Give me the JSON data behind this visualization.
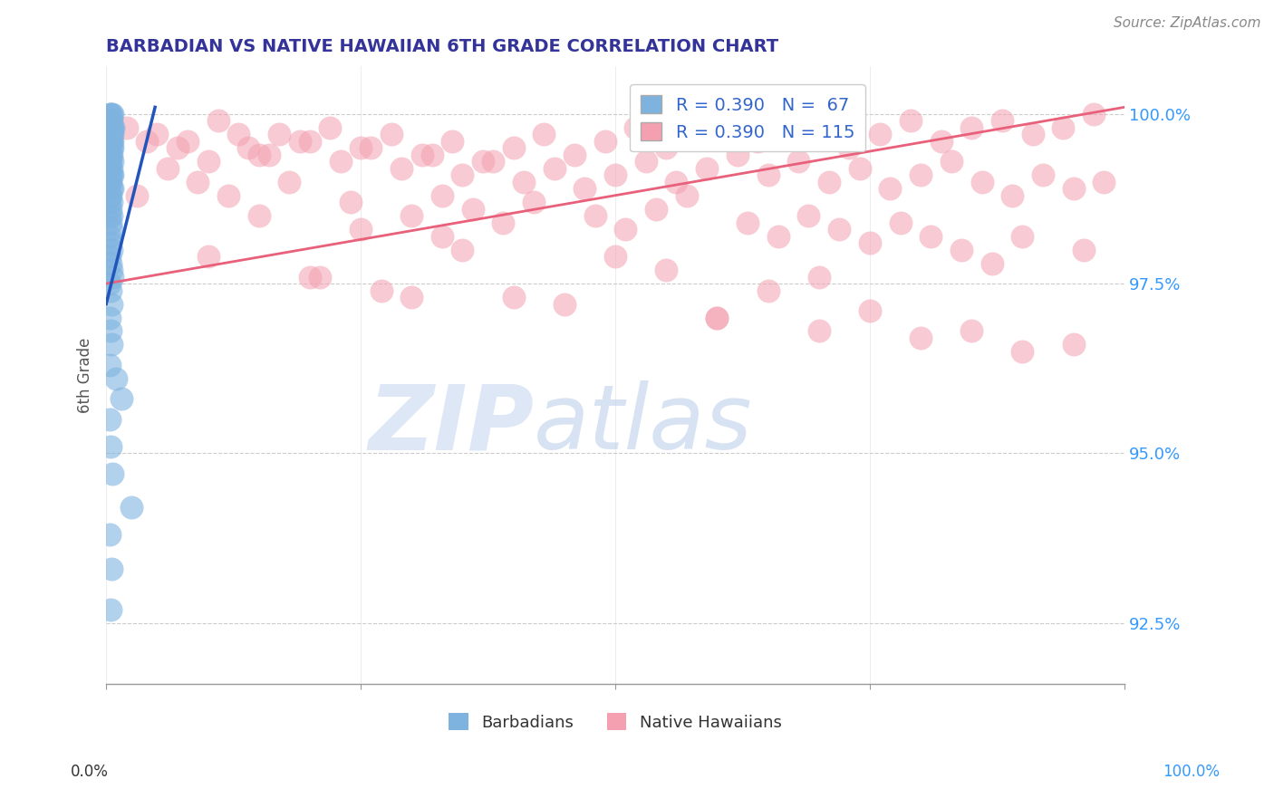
{
  "title": "BARBADIAN VS NATIVE HAWAIIAN 6TH GRADE CORRELATION CHART",
  "source_text": "Source: ZipAtlas.com",
  "ylabel": "6th Grade",
  "y_ticks": [
    0.925,
    0.95,
    0.975,
    1.0
  ],
  "y_tick_labels": [
    "92.5%",
    "95.0%",
    "97.5%",
    "100.0%"
  ],
  "x_ticks": [
    0.0,
    0.25,
    0.5,
    0.75,
    1.0
  ],
  "xlim": [
    0.0,
    1.0
  ],
  "ylim": [
    0.916,
    1.007
  ],
  "legend_blue_R": "R = 0.390",
  "legend_blue_N": "N =  67",
  "legend_pink_R": "R = 0.390",
  "legend_pink_N": "N = 115",
  "blue_color": "#7EB3E0",
  "pink_color": "#F4A0B0",
  "blue_line_color": "#2255BB",
  "pink_line_color": "#E8607A",
  "grid_color": "#CCCCCC",
  "blue_scatter_x": [
    0.003,
    0.004,
    0.005,
    0.006,
    0.003,
    0.004,
    0.005,
    0.006,
    0.007,
    0.005,
    0.004,
    0.006,
    0.005,
    0.003,
    0.004,
    0.006,
    0.005,
    0.004,
    0.003,
    0.005,
    0.006,
    0.004,
    0.005,
    0.003,
    0.006,
    0.004,
    0.005,
    0.003,
    0.004,
    0.005,
    0.006,
    0.003,
    0.004,
    0.005,
    0.006,
    0.003,
    0.004,
    0.005,
    0.003,
    0.004,
    0.005,
    0.003,
    0.004,
    0.005,
    0.003,
    0.004,
    0.005,
    0.003,
    0.004,
    0.005,
    0.006,
    0.003,
    0.004,
    0.005,
    0.003,
    0.004,
    0.005,
    0.003,
    0.01,
    0.015,
    0.003,
    0.004,
    0.006,
    0.025,
    0.003,
    0.005,
    0.004
  ],
  "blue_scatter_y": [
    1.0,
    1.0,
    1.0,
    1.0,
    0.999,
    0.999,
    0.999,
    0.998,
    0.998,
    0.998,
    0.997,
    0.997,
    0.997,
    0.997,
    0.996,
    0.996,
    0.996,
    0.996,
    0.995,
    0.995,
    0.995,
    0.994,
    0.994,
    0.993,
    0.993,
    0.993,
    0.992,
    0.992,
    0.991,
    0.991,
    0.991,
    0.99,
    0.99,
    0.989,
    0.989,
    0.988,
    0.988,
    0.987,
    0.987,
    0.986,
    0.985,
    0.985,
    0.984,
    0.983,
    0.982,
    0.981,
    0.98,
    0.979,
    0.978,
    0.977,
    0.976,
    0.975,
    0.974,
    0.972,
    0.97,
    0.968,
    0.966,
    0.963,
    0.961,
    0.958,
    0.955,
    0.951,
    0.947,
    0.942,
    0.938,
    0.933,
    0.927
  ],
  "pink_scatter_x": [
    0.02,
    0.05,
    0.08,
    0.11,
    0.14,
    0.17,
    0.2,
    0.15,
    0.22,
    0.25,
    0.28,
    0.31,
    0.34,
    0.37,
    0.4,
    0.43,
    0.46,
    0.49,
    0.52,
    0.55,
    0.58,
    0.61,
    0.64,
    0.67,
    0.7,
    0.73,
    0.76,
    0.79,
    0.82,
    0.85,
    0.88,
    0.91,
    0.94,
    0.97,
    0.04,
    0.07,
    0.1,
    0.13,
    0.16,
    0.19,
    0.23,
    0.26,
    0.29,
    0.32,
    0.35,
    0.38,
    0.41,
    0.44,
    0.47,
    0.5,
    0.53,
    0.56,
    0.59,
    0.62,
    0.65,
    0.68,
    0.71,
    0.74,
    0.77,
    0.8,
    0.83,
    0.86,
    0.89,
    0.92,
    0.95,
    0.98,
    0.06,
    0.09,
    0.12,
    0.18,
    0.24,
    0.3,
    0.33,
    0.36,
    0.39,
    0.42,
    0.48,
    0.51,
    0.54,
    0.57,
    0.63,
    0.66,
    0.69,
    0.72,
    0.75,
    0.78,
    0.81,
    0.84,
    0.87,
    0.9,
    0.96,
    0.21,
    0.27,
    0.45,
    0.6,
    0.03,
    0.15,
    0.33,
    0.5,
    0.7,
    0.25,
    0.35,
    0.55,
    0.65,
    0.75,
    0.85,
    0.95,
    0.4,
    0.6,
    0.8,
    0.1,
    0.2,
    0.3,
    0.7,
    0.9
  ],
  "pink_scatter_y": [
    0.998,
    0.997,
    0.996,
    0.999,
    0.995,
    0.997,
    0.996,
    0.994,
    0.998,
    0.995,
    0.997,
    0.994,
    0.996,
    0.993,
    0.995,
    0.997,
    0.994,
    0.996,
    0.998,
    0.995,
    0.997,
    0.999,
    0.996,
    0.997,
    0.998,
    0.995,
    0.997,
    0.999,
    0.996,
    0.998,
    0.999,
    0.997,
    0.998,
    1.0,
    0.996,
    0.995,
    0.993,
    0.997,
    0.994,
    0.996,
    0.993,
    0.995,
    0.992,
    0.994,
    0.991,
    0.993,
    0.99,
    0.992,
    0.989,
    0.991,
    0.993,
    0.99,
    0.992,
    0.994,
    0.991,
    0.993,
    0.99,
    0.992,
    0.989,
    0.991,
    0.993,
    0.99,
    0.988,
    0.991,
    0.989,
    0.99,
    0.992,
    0.99,
    0.988,
    0.99,
    0.987,
    0.985,
    0.988,
    0.986,
    0.984,
    0.987,
    0.985,
    0.983,
    0.986,
    0.988,
    0.984,
    0.982,
    0.985,
    0.983,
    0.981,
    0.984,
    0.982,
    0.98,
    0.978,
    0.982,
    0.98,
    0.976,
    0.974,
    0.972,
    0.97,
    0.988,
    0.985,
    0.982,
    0.979,
    0.976,
    0.983,
    0.98,
    0.977,
    0.974,
    0.971,
    0.968,
    0.966,
    0.973,
    0.97,
    0.967,
    0.979,
    0.976,
    0.973,
    0.968,
    0.965
  ],
  "blue_line_x": [
    0.0,
    0.048
  ],
  "blue_line_y": [
    0.972,
    1.001
  ],
  "pink_line_x": [
    0.0,
    1.0
  ],
  "pink_line_y": [
    0.975,
    1.001
  ]
}
